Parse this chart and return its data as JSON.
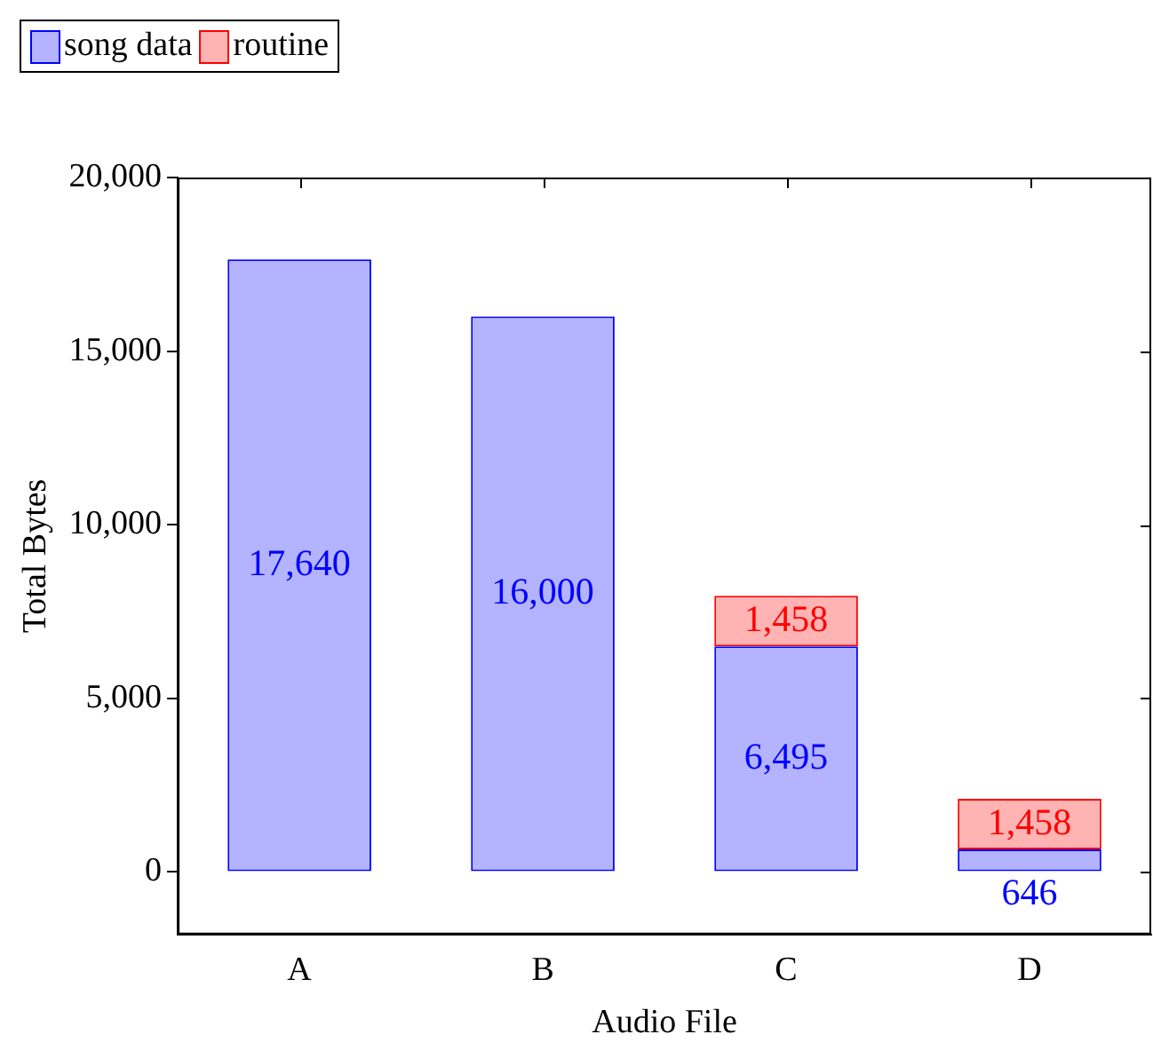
{
  "chart_data": {
    "type": "bar",
    "stacked": true,
    "xlabel": "Audio File",
    "ylabel": "Total Bytes",
    "categories": [
      "A",
      "B",
      "C",
      "D"
    ],
    "series": [
      {
        "name": "song data",
        "color": "#b3b3ff",
        "values": [
          17640,
          16000,
          6495,
          646
        ],
        "value_labels": [
          "17,640",
          "16,000",
          "6,495",
          "646"
        ]
      },
      {
        "name": "routine",
        "color": "#ffb3b3",
        "values": [
          null,
          null,
          1458,
          1458
        ],
        "value_labels": [
          null,
          null,
          "1,458",
          "1,458"
        ]
      }
    ],
    "ylim": [
      -1800,
      20000
    ],
    "yticks": [
      {
        "value": 0,
        "label": "0"
      },
      {
        "value": 5000,
        "label": "5,000"
      },
      {
        "value": 10000,
        "label": "10,000"
      },
      {
        "value": 15000,
        "label": "15,000"
      },
      {
        "value": 20000,
        "label": "20,000"
      }
    ],
    "grid": false,
    "legend": "top left"
  }
}
